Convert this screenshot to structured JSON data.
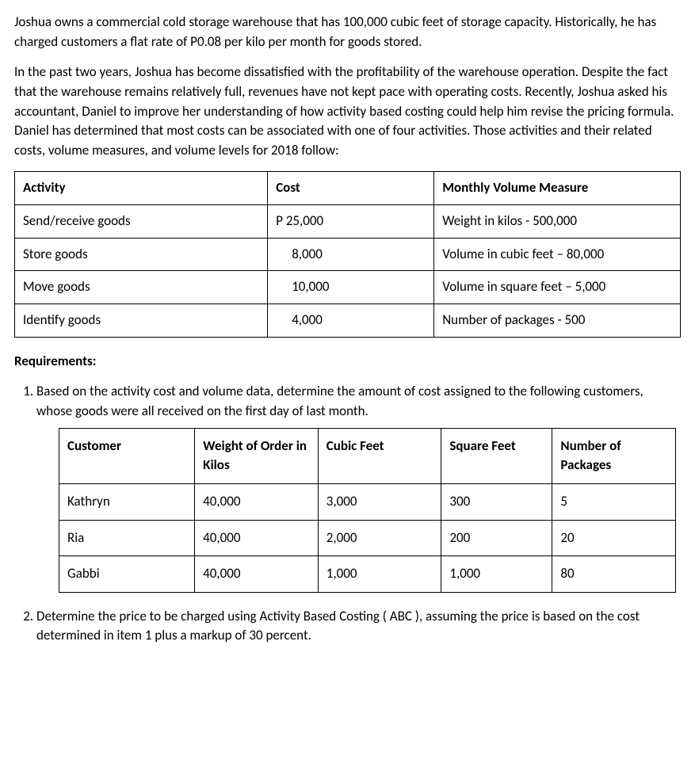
{
  "intro": {
    "p1": "Joshua owns a commercial cold storage warehouse that has 100,000 cubic feet of storage capacity. Historically, he has charged customers a flat rate of P0.08 per kilo per month for goods stored.",
    "p2": "In the past two years, Joshua has become dissatisfied with the profitability of the warehouse operation. Despite the fact that the warehouse remains relatively full, revenues have not kept pace with operating costs.  Recently, Joshua asked his accountant, Daniel to improve her understanding of how activity based costing could help him revise the pricing formula.  Daniel has determined that most costs can be associated with one of four activities.  Those activities and their related costs, volume measures, and volume levels for 2018 follow:"
  },
  "activity_table": {
    "headers": {
      "c1": "Activity",
      "c2": "Cost",
      "c3": "Monthly Volume Measure"
    },
    "rows": [
      {
        "c1": "Send/receive goods",
        "c2": "P 25,000",
        "c3": "Weight in kilos -  500,000"
      },
      {
        "c1": "Store goods",
        "c2": "8,000",
        "c3": "Volume in cubic feet – 80,000"
      },
      {
        "c1": "Move goods",
        "c2": "10,000",
        "c3": "Volume in square feet – 5,000"
      },
      {
        "c1": "Identify goods",
        "c2": "4,000",
        "c3": "Number of packages - 500"
      }
    ]
  },
  "requirements_label": "Requirements:",
  "req1": "Based on the activity cost and volume data, determine the amount of cost assigned to the following customers, whose goods were all received on the first day of last month.",
  "customer_table": {
    "headers": {
      "c1": "Customer",
      "c2": "Weight of Order in Kilos",
      "c3": "Cubic Feet",
      "c4": "Square Feet",
      "c5": "Number of Packages"
    },
    "rows": [
      {
        "c1": "Kathryn",
        "c2": "40,000",
        "c3": "3,000",
        "c4": "300",
        "c5": "5"
      },
      {
        "c1": "Ria",
        "c2": "40,000",
        "c3": "2,000",
        "c4": "200",
        "c5": "20"
      },
      {
        "c1": "Gabbi",
        "c2": "40,000",
        "c3": "1,000",
        "c4": "1,000",
        "c5": "80"
      }
    ]
  },
  "req2": "Determine the price to be charged using Activity Based Costing ( ABC ), assuming the price is based on the cost determined in item 1 plus a markup of 30 percent."
}
